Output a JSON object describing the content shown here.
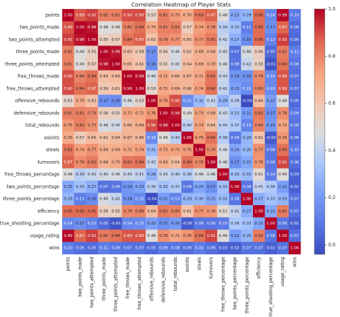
{
  "chart_data": {
    "type": "heatmap",
    "title": "Correlation Heatmap of Player Stats",
    "categories": [
      "points",
      "two_points_made",
      "two_points_attempted",
      "three_points_made",
      "three_points_attempted",
      "free_throws_made",
      "free_throws_attempted",
      "offensive_rebounds",
      "defensive_rebounds",
      "total_rebounds",
      "assists",
      "steals",
      "turnovers",
      "free_throws_percentage",
      "two_points_percentage",
      "three_points_percentage",
      "efficiency",
      "true_shooting_percentage",
      "usage_rating",
      "wins"
    ],
    "values": [
      [
        1.0,
        0.89,
        0.92,
        0.81,
        0.81,
        0.9,
        0.9,
        0.53,
        0.81,
        0.75,
        0.7,
        0.83,
        0.87,
        0.48,
        0.25,
        0.29,
        0.85,
        0.14,
        0.99,
        0.1
      ],
      [
        0.89,
        1.0,
        0.98,
        0.48,
        0.49,
        0.8,
        0.84,
        0.7,
        0.81,
        0.81,
        0.57,
        0.74,
        0.78,
        0.39,
        0.33,
        0.11,
        0.85,
        0.17,
        0.87,
        0.06
      ],
      [
        0.92,
        0.98,
        1.0,
        0.55,
        0.57,
        0.84,
        0.87,
        0.62,
        0.79,
        0.77,
        0.65,
        0.77,
        0.82,
        0.42,
        0.27,
        0.16,
        0.85,
        0.12,
        0.92,
        0.05
      ],
      [
        0.81,
        0.48,
        0.55,
        1.0,
        0.98,
        0.63,
        0.59,
        0.17,
        0.56,
        0.46,
        0.62,
        0.69,
        0.68,
        0.45,
        0.07,
        0.46,
        0.56,
        0.05,
        0.82,
        0.11
      ],
      [
        0.81,
        0.49,
        0.57,
        0.98,
        1.0,
        0.65,
        0.61,
        0.16,
        0.55,
        0.45,
        0.64,
        0.69,
        0.7,
        0.46,
        0.08,
        0.42,
        0.55,
        -0.01,
        0.84,
        0.08
      ],
      [
        0.9,
        0.8,
        0.84,
        0.63,
        0.65,
        1.0,
        0.99,
        0.46,
        0.72,
        0.66,
        0.67,
        0.71,
        0.83,
        0.43,
        0.19,
        0.18,
        0.79,
        0.14,
        0.89,
        0.07
      ],
      [
        0.9,
        0.84,
        0.87,
        0.59,
        0.61,
        0.99,
        1.0,
        0.53,
        0.72,
        0.69,
        0.66,
        0.74,
        0.84,
        0.41,
        0.23,
        0.15,
        0.8,
        0.15,
        0.89,
        0.07
      ],
      [
        0.53,
        0.7,
        0.62,
        0.17,
        0.16,
        0.46,
        0.53,
        1.0,
        0.76,
        0.9,
        0.15,
        0.31,
        0.42,
        0.28,
        0.39,
        -0.04,
        0.64,
        0.22,
        0.48,
        0.05
      ],
      [
        0.81,
        0.81,
        0.79,
        0.56,
        0.55,
        0.72,
        0.72,
        0.76,
        1.0,
        0.98,
        0.49,
        0.73,
        0.69,
        0.43,
        0.33,
        0.21,
        0.82,
        0.17,
        0.78,
        0.09
      ],
      [
        0.75,
        0.81,
        0.77,
        0.46,
        0.45,
        0.66,
        0.69,
        0.9,
        0.98,
        1.0,
        0.4,
        0.73,
        0.64,
        0.4,
        0.37,
        0.13,
        0.8,
        0.2,
        0.72,
        0.08
      ],
      [
        0.7,
        0.57,
        0.65,
        0.62,
        0.64,
        0.67,
        0.66,
        0.15,
        0.49,
        0.4,
        1.0,
        0.75,
        0.84,
        0.38,
        0.09,
        0.29,
        0.61,
        0,
        0.76,
        0.06
      ],
      [
        0.83,
        0.74,
        0.77,
        0.69,
        0.69,
        0.71,
        0.74,
        0.31,
        0.73,
        0.73,
        0.75,
        1.0,
        0.79,
        0.46,
        0.24,
        0.3,
        0.77,
        0.08,
        0.84,
        0.1
      ],
      [
        0.87,
        0.78,
        0.82,
        0.68,
        0.7,
        0.83,
        0.84,
        0.42,
        0.69,
        0.64,
        0.84,
        0.79,
        1.0,
        0.46,
        0.17,
        0.25,
        0.76,
        0.08,
        0.91,
        0.06
      ],
      [
        0.48,
        0.39,
        0.42,
        0.45,
        0.46,
        0.43,
        0.41,
        0.28,
        0.43,
        0.4,
        0.38,
        0.46,
        0.46,
        1.0,
        0.33,
        0.31,
        0.51,
        0.1,
        0.49,
        0.03
      ],
      [
        0.25,
        0.33,
        0.27,
        0.07,
        0.08,
        0.19,
        0.23,
        0.39,
        0.33,
        0.37,
        0.09,
        0.24,
        0.17,
        0.33,
        1.0,
        0.08,
        0.41,
        0.36,
        0.22,
        0.02
      ],
      [
        0.29,
        0.11,
        0.16,
        0.46,
        0.42,
        0.18,
        0.15,
        -0.04,
        0.21,
        0.13,
        0.29,
        0.3,
        0.25,
        0.31,
        0.08,
        1.0,
        0.27,
        0.33,
        0.29,
        0.07
      ],
      [
        0.85,
        0.85,
        0.85,
        0.56,
        0.55,
        0.79,
        0.8,
        0.64,
        0.82,
        0.8,
        0.61,
        0.77,
        0.76,
        0.51,
        0.41,
        0.27,
        1.0,
        0.25,
        0.82,
        0.07
      ],
      [
        0.14,
        0.17,
        0.12,
        0.05,
        -0.01,
        0.14,
        0.15,
        0.22,
        0.17,
        0.2,
        0,
        0.08,
        0.08,
        0.1,
        0.36,
        0.33,
        0.25,
        1.0,
        0.08,
        0.02
      ],
      [
        0.99,
        0.87,
        0.92,
        0.82,
        0.84,
        0.89,
        0.89,
        0.48,
        0.78,
        0.72,
        0.76,
        0.84,
        0.91,
        0.49,
        0.22,
        0.29,
        0.82,
        0.08,
        1.0,
        0.07
      ],
      [
        0.1,
        0.06,
        0.05,
        0.11,
        0.08,
        0.07,
        0.07,
        0.05,
        0.09,
        0.08,
        0.06,
        0.1,
        0.06,
        0.03,
        0.02,
        0.07,
        0.07,
        0.02,
        0.07,
        1.0
      ]
    ],
    "value_labels": [
      [
        "1.00",
        "0.89",
        "0.92",
        "0.81",
        "0.81",
        "0.90",
        "0.90",
        "0.53",
        "0.81",
        "0.75",
        "0.70",
        "0.83",
        "0.87",
        "0.48",
        "0.25",
        "0.29",
        "0.85",
        "0.14",
        "0.99",
        "0.10"
      ],
      [
        "0.89",
        "1.00",
        "0.98",
        "0.48",
        "0.49",
        "0.80",
        "0.84",
        "0.70",
        "0.81",
        "0.81",
        "0.57",
        "0.74",
        "0.78",
        "0.39",
        "0.33",
        "0.11",
        "0.85",
        "0.17",
        "0.87",
        "0.06"
      ],
      [
        "0.92",
        "0.98",
        "1.00",
        "0.55",
        "0.57",
        "0.84",
        "0.87",
        "0.62",
        "0.79",
        "0.77",
        "0.65",
        "0.77",
        "0.82",
        "0.42",
        "0.27",
        "0.16",
        "0.85",
        "0.12",
        "0.92",
        "0.05"
      ],
      [
        "0.81",
        "0.48",
        "0.55",
        "1.00",
        "0.98",
        "0.63",
        "0.59",
        "0.17",
        "0.56",
        "0.46",
        "0.62",
        "0.69",
        "0.68",
        "0.45",
        "0.07",
        "0.46",
        "0.56",
        "0.05",
        "0.82",
        "0.11"
      ],
      [
        "0.81",
        "0.49",
        "0.57",
        "0.98",
        "1.00",
        "0.65",
        "0.61",
        "0.16",
        "0.55",
        "0.45",
        "0.64",
        "0.69",
        "0.70",
        "0.46",
        "0.08",
        "0.42",
        "0.55",
        "-0.01",
        "0.84",
        "0.08"
      ],
      [
        "0.90",
        "0.80",
        "0.84",
        "0.63",
        "0.65",
        "1.00",
        "0.99",
        "0.46",
        "0.72",
        "0.66",
        "0.67",
        "0.71",
        "0.83",
        "0.43",
        "0.19",
        "0.18",
        "0.79",
        "0.14",
        "0.89",
        "0.07"
      ],
      [
        "0.90",
        "0.84",
        "0.87",
        "0.59",
        "0.61",
        "0.99",
        "1.00",
        "0.53",
        "0.72",
        "0.69",
        "0.66",
        "0.74",
        "0.84",
        "0.41",
        "0.23",
        "0.15",
        "0.80",
        "0.15",
        "0.89",
        "0.07"
      ],
      [
        "0.53",
        "0.70",
        "0.62",
        "0.17",
        "0.16",
        "0.46",
        "0.53",
        "1.00",
        "0.76",
        "0.90",
        "0.15",
        "0.31",
        "0.42",
        "0.28",
        "0.39",
        "-0.04",
        "0.64",
        "0.22",
        "0.48",
        "0.05"
      ],
      [
        "0.81",
        "0.81",
        "0.79",
        "0.56",
        "0.55",
        "0.72",
        "0.72",
        "0.76",
        "1.00",
        "0.98",
        "0.49",
        "0.73",
        "0.69",
        "0.43",
        "0.33",
        "0.21",
        "0.82",
        "0.17",
        "0.78",
        "0.09"
      ],
      [
        "0.75",
        "0.81",
        "0.77",
        "0.46",
        "0.45",
        "0.66",
        "0.69",
        "0.90",
        "0.98",
        "1.00",
        "0.40",
        "0.73",
        "0.64",
        "0.40",
        "0.37",
        "0.13",
        "0.80",
        "0.20",
        "0.72",
        "0.08"
      ],
      [
        "0.70",
        "0.57",
        "0.65",
        "0.62",
        "0.64",
        "0.67",
        "0.66",
        "0.15",
        "0.49",
        "0.40",
        "1.00",
        "0.75",
        "0.84",
        "0.38",
        "0.09",
        "0.29",
        "0.61",
        "-0.00",
        "0.76",
        "0.06"
      ],
      [
        "0.83",
        "0.74",
        "0.77",
        "0.69",
        "0.69",
        "0.71",
        "0.74",
        "0.31",
        "0.73",
        "0.73",
        "0.75",
        "1.00",
        "0.79",
        "0.46",
        "0.24",
        "0.30",
        "0.77",
        "0.08",
        "0.84",
        "0.10"
      ],
      [
        "0.87",
        "0.78",
        "0.82",
        "0.68",
        "0.70",
        "0.83",
        "0.84",
        "0.42",
        "0.69",
        "0.64",
        "0.84",
        "0.79",
        "1.00",
        "0.46",
        "0.17",
        "0.25",
        "0.76",
        "0.08",
        "0.91",
        "0.06"
      ],
      [
        "0.48",
        "0.39",
        "0.42",
        "0.45",
        "0.46",
        "0.43",
        "0.41",
        "0.28",
        "0.43",
        "0.40",
        "0.38",
        "0.46",
        "0.46",
        "1.00",
        "0.33",
        "0.31",
        "0.51",
        "0.10",
        "0.49",
        "0.03"
      ],
      [
        "0.25",
        "0.33",
        "0.27",
        "0.07",
        "0.08",
        "0.19",
        "0.23",
        "0.39",
        "0.33",
        "0.37",
        "0.09",
        "0.24",
        "0.17",
        "0.33",
        "1.00",
        "0.08",
        "0.41",
        "0.36",
        "0.22",
        "0.02"
      ],
      [
        "0.29",
        "0.11",
        "0.16",
        "0.46",
        "0.42",
        "0.18",
        "0.15",
        "-0.04",
        "0.21",
        "0.13",
        "0.29",
        "0.30",
        "0.25",
        "0.31",
        "0.08",
        "1.00",
        "0.27",
        "0.33",
        "0.29",
        "0.07"
      ],
      [
        "0.85",
        "0.85",
        "0.85",
        "0.56",
        "0.55",
        "0.79",
        "0.80",
        "0.64",
        "0.82",
        "0.80",
        "0.61",
        "0.77",
        "0.76",
        "0.51",
        "0.41",
        "0.27",
        "1.00",
        "0.25",
        "0.82",
        "0.07"
      ],
      [
        "0.14",
        "0.17",
        "0.12",
        "0.05",
        "-0.01",
        "0.14",
        "0.15",
        "0.22",
        "0.17",
        "0.20",
        "-0.00",
        "0.08",
        "0.08",
        "0.10",
        "0.36",
        "0.33",
        "0.25",
        "1.00",
        "0.08",
        "0.02"
      ],
      [
        "0.99",
        "0.87",
        "0.92",
        "0.82",
        "0.84",
        "0.89",
        "0.89",
        "0.48",
        "0.78",
        "0.72",
        "0.76",
        "0.84",
        "0.91",
        "0.49",
        "0.22",
        "0.29",
        "0.82",
        "0.08",
        "1.00",
        "0.07"
      ],
      [
        "0.10",
        "0.06",
        "0.05",
        "0.11",
        "0.08",
        "0.07",
        "0.07",
        "0.05",
        "0.09",
        "0.08",
        "0.06",
        "0.10",
        "0.06",
        "0.03",
        "0.02",
        "0.07",
        "0.07",
        "0.02",
        "0.07",
        "1.00"
      ]
    ],
    "colormap": "coolwarm",
    "clim": [
      -0.04,
      1.0
    ],
    "cticks": [
      {
        "value": 0,
        "label": "0.0"
      },
      0.2,
      0.4,
      0.6,
      0.8,
      {
        "value": 1,
        "label": "1.0"
      }
    ]
  }
}
